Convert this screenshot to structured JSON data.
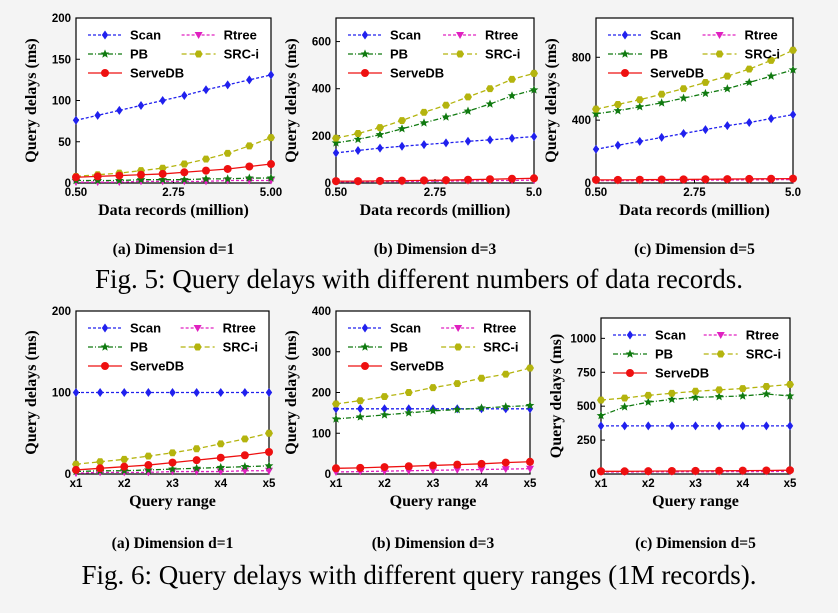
{
  "colors": {
    "Scan": "#2020ee",
    "Rtree": "#e020c0",
    "PB": "#107a10",
    "SRC-i": "#b4b40e",
    "ServeDB": "#ee1010"
  },
  "figures": [
    {
      "caption": "Fig. 5: Query delays with different numbers of data records."
    },
    {
      "caption": "Fig. 6: Query delays with different query ranges (1M records)."
    }
  ],
  "chart_data": [
    {
      "type": "line",
      "subcaption": "(a) Dimension d=1",
      "xlabel": "Data records (million)",
      "ylabel": "Query delays (ms)",
      "x": [
        0.5,
        1.0,
        1.5,
        2.0,
        2.5,
        3.0,
        3.5,
        4.0,
        4.5,
        5.0
      ],
      "xticks": [
        0.5,
        2.75,
        5.0
      ],
      "xtick_labels": [
        "0.50",
        "2.75",
        "5.00"
      ],
      "ylim": [
        0,
        200
      ],
      "yticks": [
        0,
        50,
        100,
        150,
        200
      ],
      "legend": "top",
      "series": [
        {
          "name": "Scan",
          "values": [
            76,
            82,
            88,
            94,
            100,
            106,
            113,
            119,
            125,
            131
          ]
        },
        {
          "name": "Rtree",
          "values": [
            1,
            1,
            1,
            2,
            2,
            2,
            2,
            3,
            3,
            3
          ]
        },
        {
          "name": "PB",
          "values": [
            3,
            3,
            3,
            4,
            4,
            4,
            5,
            5,
            6,
            6
          ]
        },
        {
          "name": "SRC-i",
          "values": [
            8,
            10,
            12,
            15,
            18,
            23,
            29,
            36,
            45,
            55
          ]
        },
        {
          "name": "ServeDB",
          "values": [
            7,
            8,
            9,
            10,
            11,
            13,
            15,
            17,
            20,
            23
          ]
        }
      ]
    },
    {
      "type": "line",
      "subcaption": "(b) Dimension d=3",
      "xlabel": "Data records (million)",
      "ylabel": "Query delays (ms)",
      "x": [
        0.5,
        1.0,
        1.5,
        2.0,
        2.5,
        3.0,
        3.5,
        4.0,
        4.5,
        5.0
      ],
      "xticks": [
        0.5,
        2.75,
        5.0
      ],
      "xtick_labels": [
        "0.50",
        "2.75",
        "5.0"
      ],
      "ylim": [
        0,
        700
      ],
      "yticks": [
        0,
        200,
        400,
        600
      ],
      "legend": "top",
      "series": [
        {
          "name": "Scan",
          "values": [
            128,
            138,
            148,
            156,
            163,
            170,
            177,
            183,
            190,
            197
          ]
        },
        {
          "name": "Rtree",
          "values": [
            5,
            5,
            6,
            6,
            7,
            8,
            9,
            10,
            11,
            12
          ]
        },
        {
          "name": "PB",
          "values": [
            170,
            185,
            205,
            230,
            255,
            280,
            305,
            335,
            370,
            395
          ]
        },
        {
          "name": "SRC-i",
          "values": [
            190,
            210,
            235,
            265,
            300,
            330,
            365,
            400,
            440,
            465
          ]
        },
        {
          "name": "ServeDB",
          "values": [
            8,
            8,
            9,
            10,
            11,
            12,
            14,
            16,
            18,
            20
          ]
        }
      ]
    },
    {
      "type": "line",
      "subcaption": "(c) Dimension d=5",
      "xlabel": "Data records (million)",
      "ylabel": "Query delays (ms)",
      "x": [
        0.5,
        1.0,
        1.5,
        2.0,
        2.5,
        3.0,
        3.5,
        4.0,
        4.5,
        5.0
      ],
      "xticks": [
        0.5,
        2.75,
        5.0
      ],
      "xtick_labels": [
        "0.50",
        "2.75",
        "5.0"
      ],
      "ylim": [
        0,
        1050
      ],
      "yticks": [
        0,
        400,
        800
      ],
      "legend": "top",
      "series": [
        {
          "name": "Scan",
          "values": [
            215,
            240,
            265,
            290,
            315,
            340,
            365,
            385,
            410,
            435
          ]
        },
        {
          "name": "Rtree",
          "values": [
            15,
            15,
            16,
            17,
            18,
            18,
            19,
            20,
            21,
            22
          ]
        },
        {
          "name": "PB",
          "values": [
            440,
            460,
            485,
            510,
            540,
            570,
            600,
            640,
            680,
            720
          ]
        },
        {
          "name": "SRC-i",
          "values": [
            470,
            500,
            530,
            565,
            600,
            640,
            680,
            725,
            780,
            845
          ]
        },
        {
          "name": "ServeDB",
          "values": [
            20,
            20,
            21,
            22,
            23,
            24,
            25,
            26,
            27,
            28
          ]
        }
      ]
    },
    {
      "type": "line",
      "subcaption": "(a) Dimension d=1",
      "xlabel": "Query range",
      "ylabel": "Query delays (ms)",
      "x": [
        1,
        1.5,
        2,
        2.5,
        3,
        3.5,
        4,
        4.5,
        5
      ],
      "xticks": [
        1,
        2,
        3,
        4,
        5
      ],
      "xtick_labels": [
        "x1",
        "x2",
        "x3",
        "x4",
        "x5"
      ],
      "ylim": [
        0,
        200
      ],
      "yticks": [
        0,
        100,
        200
      ],
      "legend": "top",
      "series": [
        {
          "name": "Scan",
          "values": [
            100,
            100,
            100,
            100,
            100,
            100,
            100,
            100,
            100
          ]
        },
        {
          "name": "Rtree",
          "values": [
            1,
            2,
            2,
            2,
            3,
            3,
            3,
            4,
            4
          ]
        },
        {
          "name": "PB",
          "values": [
            3,
            4,
            4,
            5,
            6,
            7,
            8,
            9,
            10
          ]
        },
        {
          "name": "SRC-i",
          "values": [
            12,
            15,
            18,
            22,
            26,
            31,
            37,
            43,
            50
          ]
        },
        {
          "name": "ServeDB",
          "values": [
            5,
            7,
            9,
            11,
            14,
            17,
            20,
            23,
            27
          ]
        }
      ]
    },
    {
      "type": "line",
      "subcaption": "(b) Dimension d=3",
      "xlabel": "Query range",
      "ylabel": "Query delays (ms)",
      "x": [
        1,
        1.5,
        2,
        2.5,
        3,
        3.5,
        4,
        4.5,
        5
      ],
      "xticks": [
        1,
        2,
        3,
        4,
        5
      ],
      "xtick_labels": [
        "x1",
        "x2",
        "x3",
        "x4",
        "x5"
      ],
      "ylim": [
        0,
        400
      ],
      "yticks": [
        0,
        100,
        200,
        300,
        400
      ],
      "legend": "top",
      "series": [
        {
          "name": "Scan",
          "values": [
            160,
            160,
            160,
            160,
            160,
            160,
            160,
            160,
            160
          ]
        },
        {
          "name": "Rtree",
          "values": [
            5,
            6,
            7,
            8,
            9,
            10,
            11,
            12,
            13
          ]
        },
        {
          "name": "PB",
          "values": [
            135,
            140,
            145,
            150,
            155,
            158,
            162,
            165,
            168
          ]
        },
        {
          "name": "SRC-i",
          "values": [
            172,
            180,
            190,
            200,
            212,
            222,
            235,
            245,
            260
          ]
        },
        {
          "name": "ServeDB",
          "values": [
            14,
            15,
            17,
            19,
            21,
            23,
            25,
            28,
            30
          ]
        }
      ]
    },
    {
      "type": "line",
      "subcaption": "(c) Dimension d=5",
      "xlabel": "Query range",
      "ylabel": "Query delays (ms)",
      "x": [
        1,
        1.5,
        2,
        2.5,
        3,
        3.5,
        4,
        4.5,
        5
      ],
      "xticks": [
        1,
        2,
        3,
        4,
        5
      ],
      "xtick_labels": [
        "x1",
        "x2",
        "x3",
        "x4",
        "x5"
      ],
      "ylim": [
        0,
        1150
      ],
      "yticks": [
        0,
        250,
        500,
        750,
        1000
      ],
      "legend": "top",
      "series": [
        {
          "name": "Scan",
          "values": [
            355,
            355,
            355,
            355,
            355,
            355,
            355,
            355,
            355
          ]
        },
        {
          "name": "Rtree",
          "values": [
            15,
            15,
            16,
            16,
            17,
            17,
            18,
            18,
            19
          ]
        },
        {
          "name": "PB",
          "values": [
            430,
            495,
            530,
            550,
            565,
            570,
            575,
            590,
            575
          ]
        },
        {
          "name": "SRC-i",
          "values": [
            545,
            560,
            580,
            595,
            610,
            620,
            630,
            645,
            660
          ]
        },
        {
          "name": "ServeDB",
          "values": [
            20,
            20,
            21,
            22,
            23,
            24,
            25,
            26,
            28
          ]
        }
      ]
    }
  ]
}
